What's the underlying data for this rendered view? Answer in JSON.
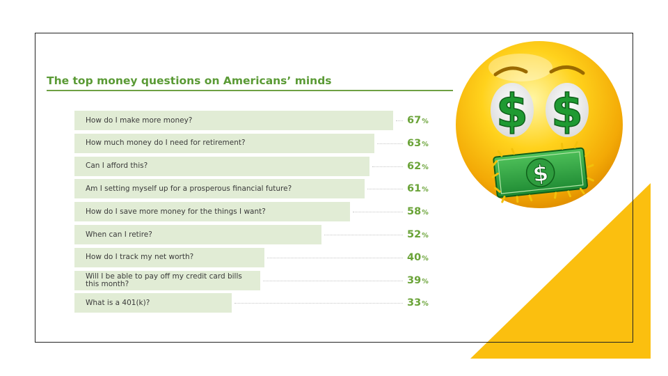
{
  "chart_data": {
    "type": "bar",
    "orientation": "horizontal",
    "title": "The top money questions on Americans’ minds",
    "categories": [
      "How do I make more money?",
      "How much money do I need for retirement?",
      "Can I afford this?",
      "Am I setting myself up for a prosperous financial future?",
      "How do I save more money for the things I want?",
      "When can I retire?",
      "How do I track my net worth?",
      "Will I be able to pay off my credit card bills this month?",
      "What is a 401(k)?"
    ],
    "values": [
      67,
      63,
      62,
      61,
      58,
      52,
      40,
      39,
      33
    ],
    "value_suffix": "%",
    "bar_color": "#e1ecd5",
    "value_color": "#6aa338",
    "title_color": "#5a9a35"
  },
  "decor": {
    "emoji_icon": "money-eyes-emoji-icon",
    "triangle_color": "#fbbf0f"
  }
}
